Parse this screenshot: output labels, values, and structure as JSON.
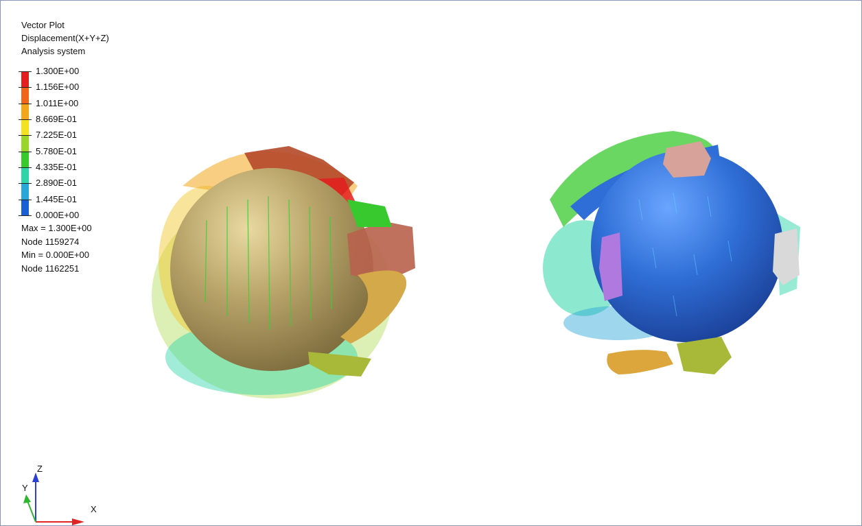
{
  "legend": {
    "title": "Vector Plot",
    "result": "Displacement(X+Y+Z)",
    "system": "Analysis system",
    "levels": [
      "1.300E+00",
      "1.156E+00",
      "1.011E+00",
      "8.669E-01",
      "7.225E-01",
      "5.780E-01",
      "4.335E-01",
      "2.890E-01",
      "1.445E-01",
      "0.000E+00"
    ],
    "colors": [
      "#e41f1f",
      "#f0651a",
      "#f3a51e",
      "#f2e222",
      "#9ad52a",
      "#37c92e",
      "#2fd5a9",
      "#28a7d8",
      "#1b5fd6",
      "#151aa8"
    ],
    "max_label": "Max = 1.300E+00",
    "max_node": "Node 1159274",
    "min_label": "Min = 0.000E+00",
    "min_node": "Node 1162251"
  },
  "triad": {
    "z": "Z",
    "y": "Y",
    "x": "X",
    "z_color": "#2a3fd4",
    "y_color": "#2fb62f",
    "x_color": "#e02323"
  },
  "models": {
    "left": {
      "sphere_color": "#b09a5e"
    },
    "right": {
      "sphere_color": "#2f6ed6"
    }
  }
}
